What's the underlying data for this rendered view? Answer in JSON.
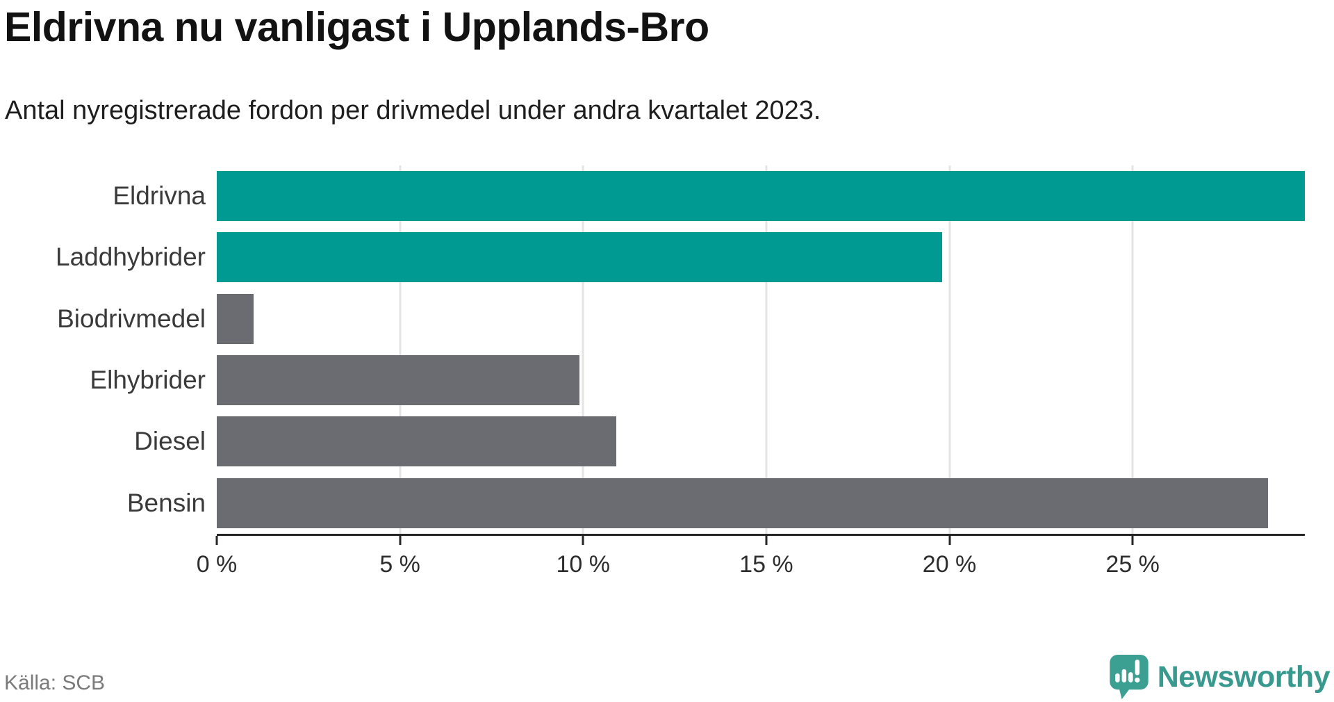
{
  "header": {
    "title": "Eldrivna nu vanligast i Upplands-Bro",
    "subtitle": "Antal nyregistrerade fordon per drivmedel under andra kvartalet 2023."
  },
  "chart_data": {
    "type": "bar",
    "orientation": "horizontal",
    "title": "Eldrivna nu vanligast i Upplands-Bro",
    "subtitle": "Antal nyregistrerade fordon per drivmedel under andra kvartalet 2023.",
    "categories": [
      "Eldrivna",
      "Laddhybrider",
      "Biodrivmedel",
      "Elhybrider",
      "Diesel",
      "Bensin"
    ],
    "values": [
      29.7,
      19.8,
      1.0,
      9.9,
      10.9,
      28.7
    ],
    "unit": "%",
    "bar_colors": [
      "#009A93",
      "#009A93",
      "#6B6B72",
      "#6B6B72",
      "#6B6B72",
      "#6B6B72"
    ],
    "highlight_color": "#009A93",
    "default_color": "#6B6B72",
    "xlim": [
      0,
      29.7
    ],
    "x_ticks": [
      0,
      5,
      10,
      15,
      20,
      25
    ],
    "x_tick_labels": [
      "0 %",
      "5 %",
      "10 %",
      "15 %",
      "20 %",
      "25 %"
    ],
    "xlabel": "",
    "ylabel": "",
    "grid": "vertical-only",
    "legend": null
  },
  "footer": {
    "source": "Källa: SCB",
    "brand": "Newsworthy"
  },
  "colors": {
    "accent_teal": "#009A93",
    "bar_gray": "#6B6B72",
    "gridline": "#e4e4e4",
    "axis": "#262626",
    "logo_teal": "#3BA092",
    "wordmark_teal": "#38998e",
    "source_text": "#7a7a7a"
  }
}
